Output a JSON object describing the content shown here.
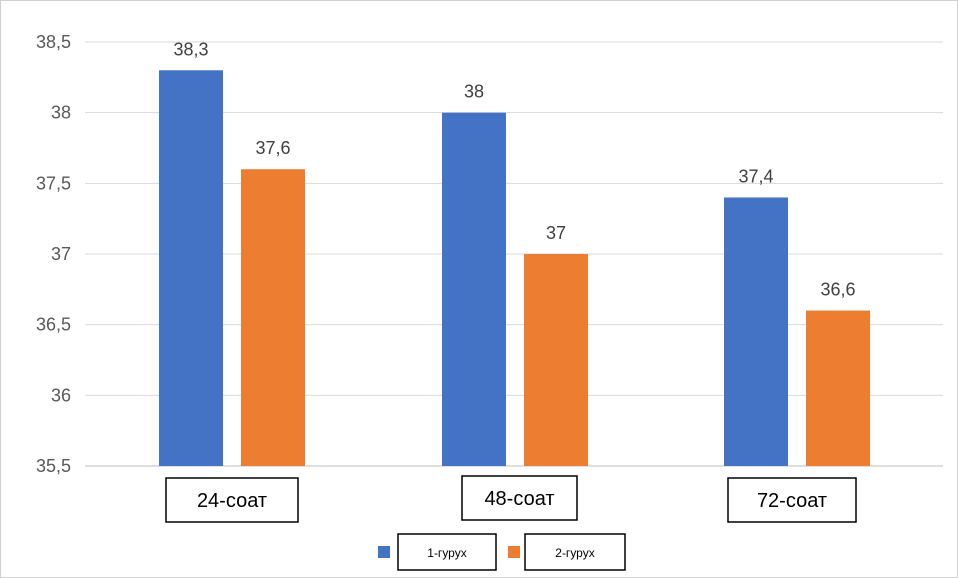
{
  "chart_data": {
    "type": "bar",
    "categories": [
      "24-соат",
      "48-соат",
      "72-соат"
    ],
    "series": [
      {
        "name": "1-гурух",
        "color": "#4472C4",
        "values": [
          38.3,
          38,
          37.4
        ],
        "labels": [
          "38,3",
          "38",
          "37,4"
        ]
      },
      {
        "name": "2-гурух",
        "color": "#ED7D31",
        "values": [
          37.6,
          37,
          36.6
        ],
        "labels": [
          "37,6",
          "37",
          "36,6"
        ]
      }
    ],
    "ylim": [
      35.5,
      38.5
    ],
    "yticks": [
      35.5,
      36,
      36.5,
      37,
      37.5,
      38,
      38.5
    ],
    "ytick_labels": [
      "35,5",
      "36",
      "36,5",
      "37",
      "37,5",
      "38",
      "38,5"
    ],
    "grid": true,
    "legend": "bottom"
  }
}
